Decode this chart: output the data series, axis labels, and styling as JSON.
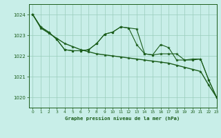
{
  "bg_color": "#c8eee8",
  "grid_color": "#99ccbb",
  "line_color": "#1a5c1a",
  "title": "Graphe pression niveau de la mer (hPa)",
  "xlim": [
    -0.5,
    23
  ],
  "ylim": [
    1019.5,
    1024.5
  ],
  "yticks": [
    1020,
    1021,
    1022,
    1023,
    1024
  ],
  "xticks": [
    0,
    1,
    2,
    3,
    4,
    5,
    6,
    7,
    8,
    9,
    10,
    11,
    12,
    13,
    14,
    15,
    16,
    17,
    18,
    19,
    20,
    21,
    22,
    23
  ],
  "series1": [
    1024.0,
    1023.4,
    1023.15,
    1022.8,
    1022.3,
    1022.25,
    1022.25,
    1022.3,
    1022.6,
    1023.05,
    1023.15,
    1023.4,
    1023.35,
    1022.55,
    1022.1,
    1022.05,
    1022.55,
    1022.4,
    1021.8,
    1021.8,
    1021.85,
    1021.85,
    1020.85,
    1020.0
  ],
  "series2": [
    1024.0,
    1023.4,
    1023.15,
    1022.8,
    1022.3,
    1022.25,
    1022.25,
    1022.3,
    1022.6,
    1023.05,
    1023.15,
    1023.4,
    1023.35,
    1023.3,
    1022.1,
    1022.05,
    1022.1,
    1022.1,
    1022.1,
    1021.8,
    1021.8,
    1021.85,
    1020.85,
    1020.0
  ],
  "series3": [
    1024.0,
    1023.35,
    1023.1,
    1022.85,
    1022.6,
    1022.45,
    1022.3,
    1022.2,
    1022.1,
    1022.05,
    1022.0,
    1021.95,
    1021.9,
    1021.85,
    1021.8,
    1021.75,
    1021.7,
    1021.65,
    1021.55,
    1021.45,
    1021.35,
    1021.25,
    1020.6,
    1020.0
  ]
}
